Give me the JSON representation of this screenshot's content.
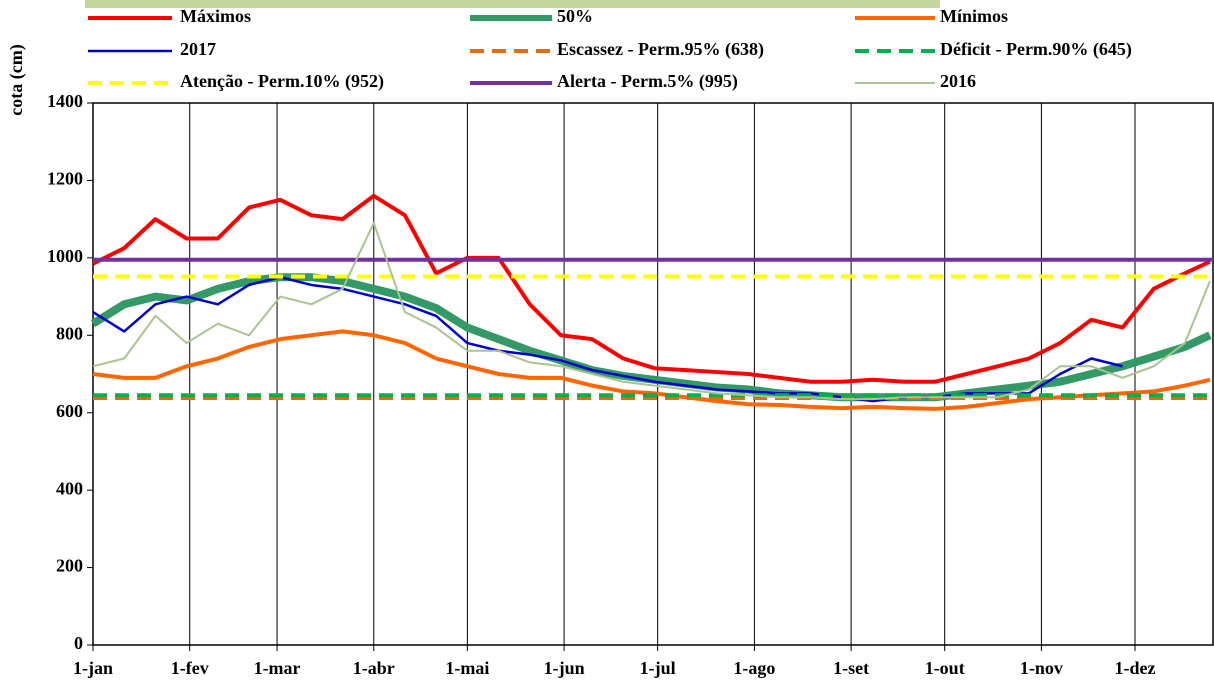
{
  "chart_data": {
    "type": "line",
    "y_label": "cota (cm)",
    "x": [
      0,
      10,
      20,
      30,
      40,
      50,
      60,
      70,
      80,
      90,
      100,
      110,
      120,
      130,
      140,
      150,
      160,
      170,
      180,
      190,
      200,
      210,
      220,
      230,
      240,
      250,
      260,
      270,
      280,
      290,
      300,
      310,
      320,
      330,
      340,
      350,
      358
    ],
    "xlim": [
      0,
      359
    ],
    "xticks": [
      {
        "value": 0,
        "label": "1-jan"
      },
      {
        "value": 31,
        "label": "1-fev"
      },
      {
        "value": 59,
        "label": "1-mar"
      },
      {
        "value": 90,
        "label": "1-abr"
      },
      {
        "value": 120,
        "label": "1-mai"
      },
      {
        "value": 151,
        "label": "1-jun"
      },
      {
        "value": 181,
        "label": "1-jul"
      },
      {
        "value": 212,
        "label": "1-ago"
      },
      {
        "value": 243,
        "label": "1-set"
      },
      {
        "value": 273,
        "label": "1-out"
      },
      {
        "value": 304,
        "label": "1-nov"
      },
      {
        "value": 334,
        "label": "1-dez"
      }
    ],
    "ylim": [
      0,
      1400
    ],
    "yticks": [
      0,
      200,
      400,
      600,
      800,
      1000,
      1200,
      1400
    ],
    "grid": "x",
    "series": [
      {
        "name": "Máximos",
        "color": "#ff0000",
        "width": 4,
        "values": [
          985,
          1025,
          1100,
          1050,
          1050,
          1130,
          1150,
          1110,
          1100,
          1160,
          1110,
          960,
          1000,
          1000,
          880,
          800,
          790,
          740,
          715,
          710,
          705,
          700,
          690,
          680,
          680,
          685,
          680,
          680,
          700,
          720,
          740,
          780,
          840,
          820,
          920,
          960,
          990
        ]
      },
      {
        "name": "50%",
        "color": "#339966",
        "width": 8,
        "values": [
          830,
          880,
          900,
          890,
          920,
          940,
          950,
          950,
          940,
          920,
          900,
          870,
          820,
          790,
          760,
          735,
          710,
          695,
          685,
          675,
          665,
          660,
          650,
          645,
          640,
          640,
          640,
          640,
          650,
          660,
          670,
          680,
          700,
          720,
          745,
          770,
          800
        ]
      },
      {
        "name": "Mínimos",
        "color": "#ff6600",
        "width": 4,
        "values": [
          700,
          690,
          690,
          720,
          740,
          770,
          790,
          800,
          810,
          800,
          780,
          740,
          720,
          700,
          690,
          690,
          670,
          655,
          650,
          640,
          630,
          622,
          620,
          615,
          612,
          615,
          612,
          610,
          615,
          625,
          635,
          640,
          645,
          650,
          655,
          670,
          685
        ]
      },
      {
        "name": "2017",
        "color": "#0000cc",
        "width": 2.5,
        "values": [
          860,
          810,
          880,
          900,
          880,
          930,
          950,
          930,
          920,
          900,
          880,
          850,
          780,
          760,
          750,
          735,
          710,
          695,
          680,
          670,
          660,
          655,
          650,
          650,
          640,
          630,
          640,
          640,
          650,
          650,
          650,
          700,
          740,
          720,
          null,
          null,
          null
        ]
      },
      {
        "name": "Escassez - Perm.95% (638)",
        "color": "#e46c0a",
        "width": 4,
        "dash": true,
        "value": 638
      },
      {
        "name": "Déficit - Perm.90% (645)",
        "color": "#00b050",
        "width": 4,
        "dash": true,
        "value": 645
      },
      {
        "name": "Atenção - Perm.10% (952)",
        "color": "#ffff00",
        "width": 4,
        "dash": true,
        "value": 952
      },
      {
        "name": "Alerta - Perm.5% (995)",
        "color": "#7030a0",
        "width": 4,
        "value": 995
      },
      {
        "name": "2016",
        "color": "#a9c48f",
        "width": 2,
        "values": [
          720,
          740,
          850,
          780,
          830,
          800,
          900,
          880,
          920,
          1090,
          860,
          820,
          760,
          760,
          730,
          720,
          700,
          680,
          670,
          660,
          650,
          645,
          640,
          640,
          635,
          635,
          640,
          640,
          640,
          640,
          660,
          720,
          720,
          690,
          720,
          780,
          940
        ]
      }
    ]
  }
}
